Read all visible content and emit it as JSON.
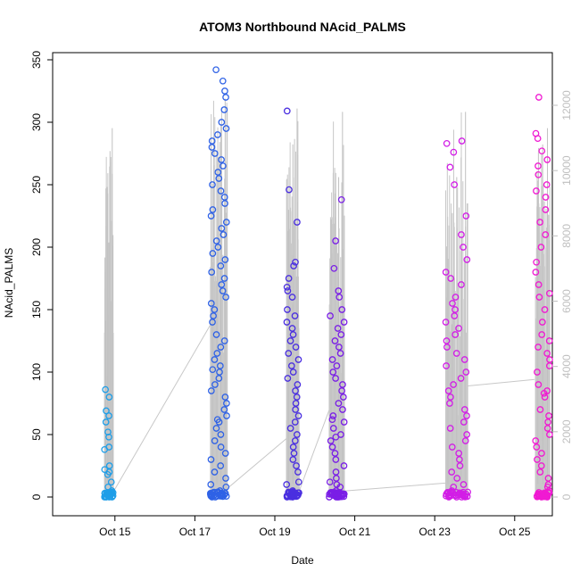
{
  "chart_data": {
    "type": "scatter",
    "title": "ATOM3 Northbound NAcid_PALMS",
    "xlabel": "Date",
    "ylabel": "NAcid_PALMS",
    "x_ticks": [
      "Oct 15",
      "Oct 17",
      "Oct 19",
      "Oct 21",
      "Oct 23",
      "Oct 25"
    ],
    "x_range": [
      "2017-10-14",
      "2017-10-26"
    ],
    "y_ticks": [
      0,
      50,
      100,
      150,
      200,
      250,
      300,
      350
    ],
    "ylim": [
      0,
      350
    ],
    "y2_ticks": [
      0,
      2000,
      4000,
      6000,
      8000,
      10000,
      12000
    ],
    "y2lim": [
      0,
      12500
    ],
    "grid": false,
    "colors": {
      "flight_1": "#1e9ee8",
      "flight_2": "#2f62e6",
      "flight_3": "#4a2fe0",
      "flight_4": "#7a1ee6",
      "flight_5": "#d21ee6",
      "flight_6": "#f01ad2",
      "altitude_trace": "#bfbfbf"
    },
    "flights": [
      {
        "center": 14.85,
        "width": 0.22,
        "color": "flight_1",
        "values": [
          0,
          0,
          0,
          1,
          1,
          2,
          3,
          5,
          8,
          12,
          18,
          20,
          22,
          25,
          38,
          40,
          48,
          52,
          60,
          65,
          69,
          80,
          86
        ],
        "altitude_peaks": [
          5400,
          9300,
          10600,
          11300
        ]
      },
      {
        "center": 17.6,
        "width": 0.42,
        "color": "flight_2",
        "values": [
          0,
          0,
          1,
          2,
          5,
          8,
          10,
          15,
          20,
          25,
          30,
          35,
          40,
          45,
          50,
          55,
          60,
          62,
          65,
          70,
          75,
          80,
          85,
          90,
          95,
          100,
          102,
          105,
          110,
          115,
          120,
          125,
          130,
          140,
          145,
          150,
          155,
          160,
          165,
          170,
          175,
          180,
          185,
          190,
          195,
          200,
          205,
          210,
          215,
          220,
          225,
          230,
          235,
          240,
          245,
          250,
          255,
          260,
          265,
          270,
          275,
          280,
          285,
          290,
          295,
          300,
          310,
          320,
          325,
          333,
          342
        ],
        "altitude_peaks": [
          9600,
          10600,
          11400,
          12200
        ]
      },
      {
        "center": 19.45,
        "width": 0.32,
        "color": "flight_3",
        "values": [
          0,
          0,
          1,
          3,
          5,
          10,
          12,
          20,
          25,
          30,
          35,
          40,
          45,
          50,
          55,
          60,
          65,
          70,
          75,
          80,
          85,
          90,
          95,
          100,
          105,
          110,
          115,
          120,
          125,
          130,
          135,
          140,
          145,
          150,
          160,
          165,
          168,
          175,
          185,
          188,
          220,
          246,
          309
        ],
        "altitude_peaks": [
          8800,
          10800,
          11900
        ]
      },
      {
        "center": 20.55,
        "width": 0.38,
        "color": "flight_4",
        "values": [
          0,
          0,
          0,
          1,
          2,
          5,
          8,
          10,
          12,
          15,
          20,
          25,
          30,
          35,
          40,
          45,
          48,
          50,
          55,
          60,
          62,
          65,
          70,
          75,
          80,
          85,
          90,
          95,
          100,
          105,
          110,
          115,
          120,
          125,
          130,
          135,
          140,
          145,
          150,
          160,
          165,
          183,
          205,
          238
        ],
        "altitude_peaks": [
          8500,
          9300,
          9800,
          11800
        ]
      },
      {
        "center": 23.55,
        "width": 0.55,
        "color": "flight_5",
        "values": [
          0,
          0,
          1,
          2,
          5,
          8,
          10,
          15,
          20,
          25,
          30,
          35,
          40,
          45,
          50,
          55,
          60,
          65,
          70,
          75,
          80,
          85,
          90,
          95,
          100,
          105,
          110,
          115,
          120,
          125,
          130,
          135,
          140,
          145,
          150,
          155,
          160,
          170,
          175,
          180,
          190,
          200,
          210,
          225,
          250,
          264,
          276,
          283,
          285
        ],
        "altitude_peaks": [
          7300,
          8700,
          9800,
          10400,
          11800
        ]
      },
      {
        "center": 25.7,
        "width": 0.36,
        "color": "flight_6",
        "values": [
          0,
          0,
          1,
          2,
          5,
          8,
          10,
          15,
          20,
          25,
          30,
          35,
          40,
          45,
          50,
          55,
          60,
          65,
          70,
          80,
          83,
          85,
          90,
          100,
          105,
          110,
          115,
          120,
          125,
          130,
          140,
          150,
          160,
          163,
          170,
          180,
          188,
          200,
          210,
          220,
          230,
          240,
          245,
          250,
          258,
          265,
          270,
          277,
          287,
          291,
          320
        ],
        "altitude_peaks": [
          9300,
          10800,
          11300
        ]
      }
    ],
    "connectors": [
      [
        [
          14.9,
          30
        ],
        [
          17.4,
          5300
        ]
      ],
      [
        [
          17.8,
          250
        ],
        [
          19.3,
          1800
        ]
      ],
      [
        [
          19.6,
          150
        ],
        [
          20.4,
          2800
        ]
      ],
      [
        [
          20.7,
          180
        ],
        [
          23.3,
          430
        ]
      ],
      [
        [
          23.8,
          3400
        ],
        [
          25.5,
          3600
        ]
      ]
    ]
  }
}
